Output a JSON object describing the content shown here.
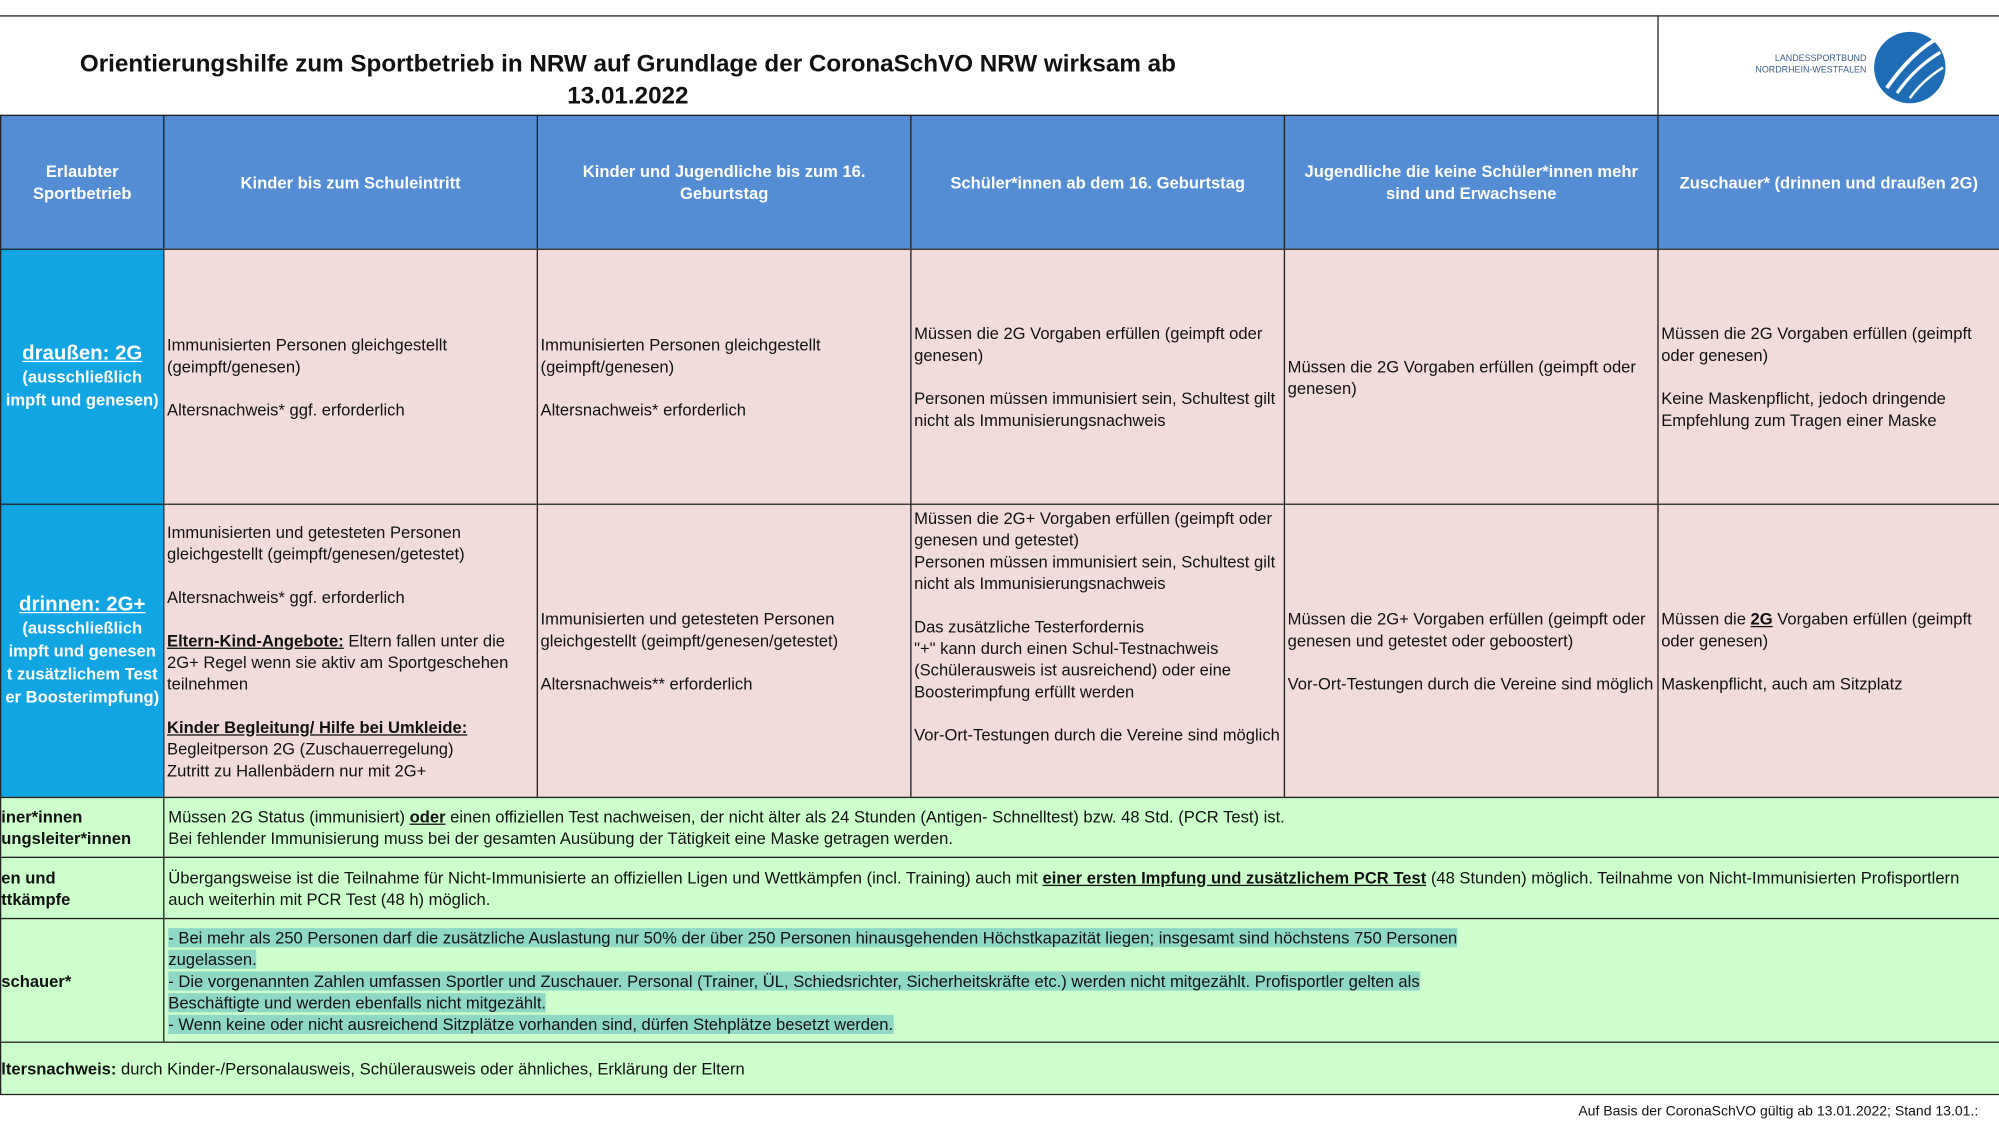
{
  "header": {
    "title": "Orientierungshilfe zum Sportbetrieb in NRW auf Grundlage der CoronaSchVO NRW wirksam ab",
    "date": "13.01.2022",
    "logo_lines": [
      "LANDESSPORTBUND",
      "NORDRHEIN-WESTFALEN"
    ]
  },
  "table": {
    "columns": [
      "Erlaubter Sportbetrieb",
      "Kinder bis zum Schuleintritt",
      "Kinder und Jugendliche bis zum 16. Geburtstag",
      "Schüler*innen ab dem 16. Geburtstag",
      "Jugendliche die keine Schüler*innen mehr sind und Erwachsene",
      "Zuschauer* (drinnen und draußen 2G)"
    ],
    "rows": [
      {
        "label": [
          "draußen: 2G",
          "(ausschließlich",
          "impft und genesen)"
        ],
        "cells": [
          [
            [
              "Immunisierten Personen gleichgestellt (geimpft/genesen)"
            ],
            [
              "Altersnachweis* ggf. erforderlich"
            ]
          ],
          [
            [
              "Immunisierten Personen gleichgestellt (geimpft/genesen)"
            ],
            [
              "Altersnachweis* erforderlich"
            ]
          ],
          [
            [
              "Müssen die 2G Vorgaben erfüllen (geimpft oder genesen)"
            ],
            [
              "Personen müssen immunisiert sein, Schultest gilt nicht als Immunisierungsnachweis"
            ]
          ],
          [
            [
              "Müssen die 2G Vorgaben erfüllen (geimpft oder genesen)"
            ]
          ],
          [
            [
              "Müssen die 2G Vorgaben erfüllen (geimpft oder genesen)"
            ],
            [
              "Keine Maskenpflicht, jedoch dringende Empfehlung zum Tragen einer Maske"
            ]
          ]
        ]
      },
      {
        "label": [
          "drinnen: 2G+",
          "(ausschließlich",
          "impft und genesen",
          "t zusätzlichem Test",
          "er Boosterimpfung)"
        ],
        "cells": [
          [
            [
              "Immunisierten und getesteten Personen gleichgestellt (geimpft/genesen/getestet)"
            ],
            [
              "Altersnachweis* ggf. erforderlich"
            ],
            [
              [
                {
                  "em": "Eltern-Kind-Angebote:"
                },
                " Eltern fallen unter die 2G+ Regel wenn sie aktiv am Sportgeschehen teilnehmen"
              ]
            ],
            [
              [
                {
                  "em": "Kinder Begleitung/ Hilfe bei Umkleide:"
                }
              ],
              "Begleitperson 2G (Zuschauerregelung)",
              "Zutritt zu Hallenbädern nur mit 2G+"
            ]
          ],
          [
            [
              "Immunisierten und getesteten Personen gleichgestellt (geimpft/genesen/getestet)"
            ],
            [
              "Altersnachweis** erforderlich"
            ]
          ],
          [
            [
              "Müssen die 2G+ Vorgaben erfüllen (geimpft oder genesen und getestet)",
              "Personen müssen immunisiert sein, Schultest gilt nicht als Immunisierungsnachweis"
            ],
            [
              "Das zusätzliche Testerfordernis",
              "\"+\"  kann durch einen Schul-Testnachweis (Schülerausweis ist ausreichend) oder eine Boosterimpfung erfüllt werden"
            ],
            [
              "Vor-Ort-Testungen durch die Vereine sind möglich"
            ]
          ],
          [
            [
              "Müssen die 2G+ Vorgaben erfüllen (geimpft oder genesen und getestet oder geboostert)"
            ],
            [
              "Vor-Ort-Testungen durch die Vereine sind möglich"
            ]
          ],
          [
            [
              [
                "Müssen die ",
                {
                  "em": "2G"
                },
                " Vorgaben erfüllen (geimpft oder genesen)"
              ]
            ],
            [
              "Maskenpflicht, auch am Sitzplatz"
            ]
          ]
        ]
      }
    ],
    "notes": [
      {
        "label": [
          "iner*innen",
          "ungsleiter*innen"
        ],
        "lines": [
          [
            "Müssen 2G Status (immunisiert) ",
            {
              "em": "oder"
            },
            " einen offiziellen Test nachweisen, der nicht älter als 24 Stunden (Antigen- Schnelltest) bzw. 48 Std. (PCR Test) ist."
          ],
          "Bei fehlender Immunisierung muss bei der gesamten Ausübung der Tätigkeit eine Maske getragen werden."
        ]
      },
      {
        "label": [
          "en und",
          "ttkämpfe"
        ],
        "lines": [
          [
            "Übergangsweise ist die Teilnahme für Nicht-Immunisierte an offiziellen Ligen und Wettkämpfen (incl. Training) auch mit ",
            {
              "em": "einer ersten Impfung und zusätzlichem PCR Test"
            },
            " (48 Stunden) möglich. Teilnahme von Nicht-Immunisierten Profisportlern auch weiterhin mit PCR Test (48 h) möglich."
          ]
        ]
      },
      {
        "label": [
          "schauer*"
        ],
        "highlight": true,
        "lines": [
          "- Bei mehr als 250 Personen darf die zusätzliche Auslastung nur 50% der über 250 Personen hinausgehenden Höchstkapazität liegen; insgesamt sind höchstens 750 Personen zugelassen.",
          "- Die vorgenannten Zahlen umfassen Sportler und Zuschauer. Personal (Trainer, ÜL, Schiedsrichter, Sicherheitskräfte etc.) werden nicht mitgezählt. Profisportler gelten als Beschäftigte und werden ebenfalls nicht mitgezählt.",
          "- Wenn keine oder nicht ausreichend Sitzplätze vorhanden sind, dürfen Stehplätze besetzt werden."
        ]
      }
    ],
    "footnote": [
      {
        "b": "ltersnachweis:"
      },
      " durch Kinder-/Personalausweis, Schülerausweis oder ähnliches, Erklärung der Eltern"
    ]
  },
  "footer": "Auf Basis der CoronaSchVO gültig ab 13.01.2022; Stand 13.01.:"
}
